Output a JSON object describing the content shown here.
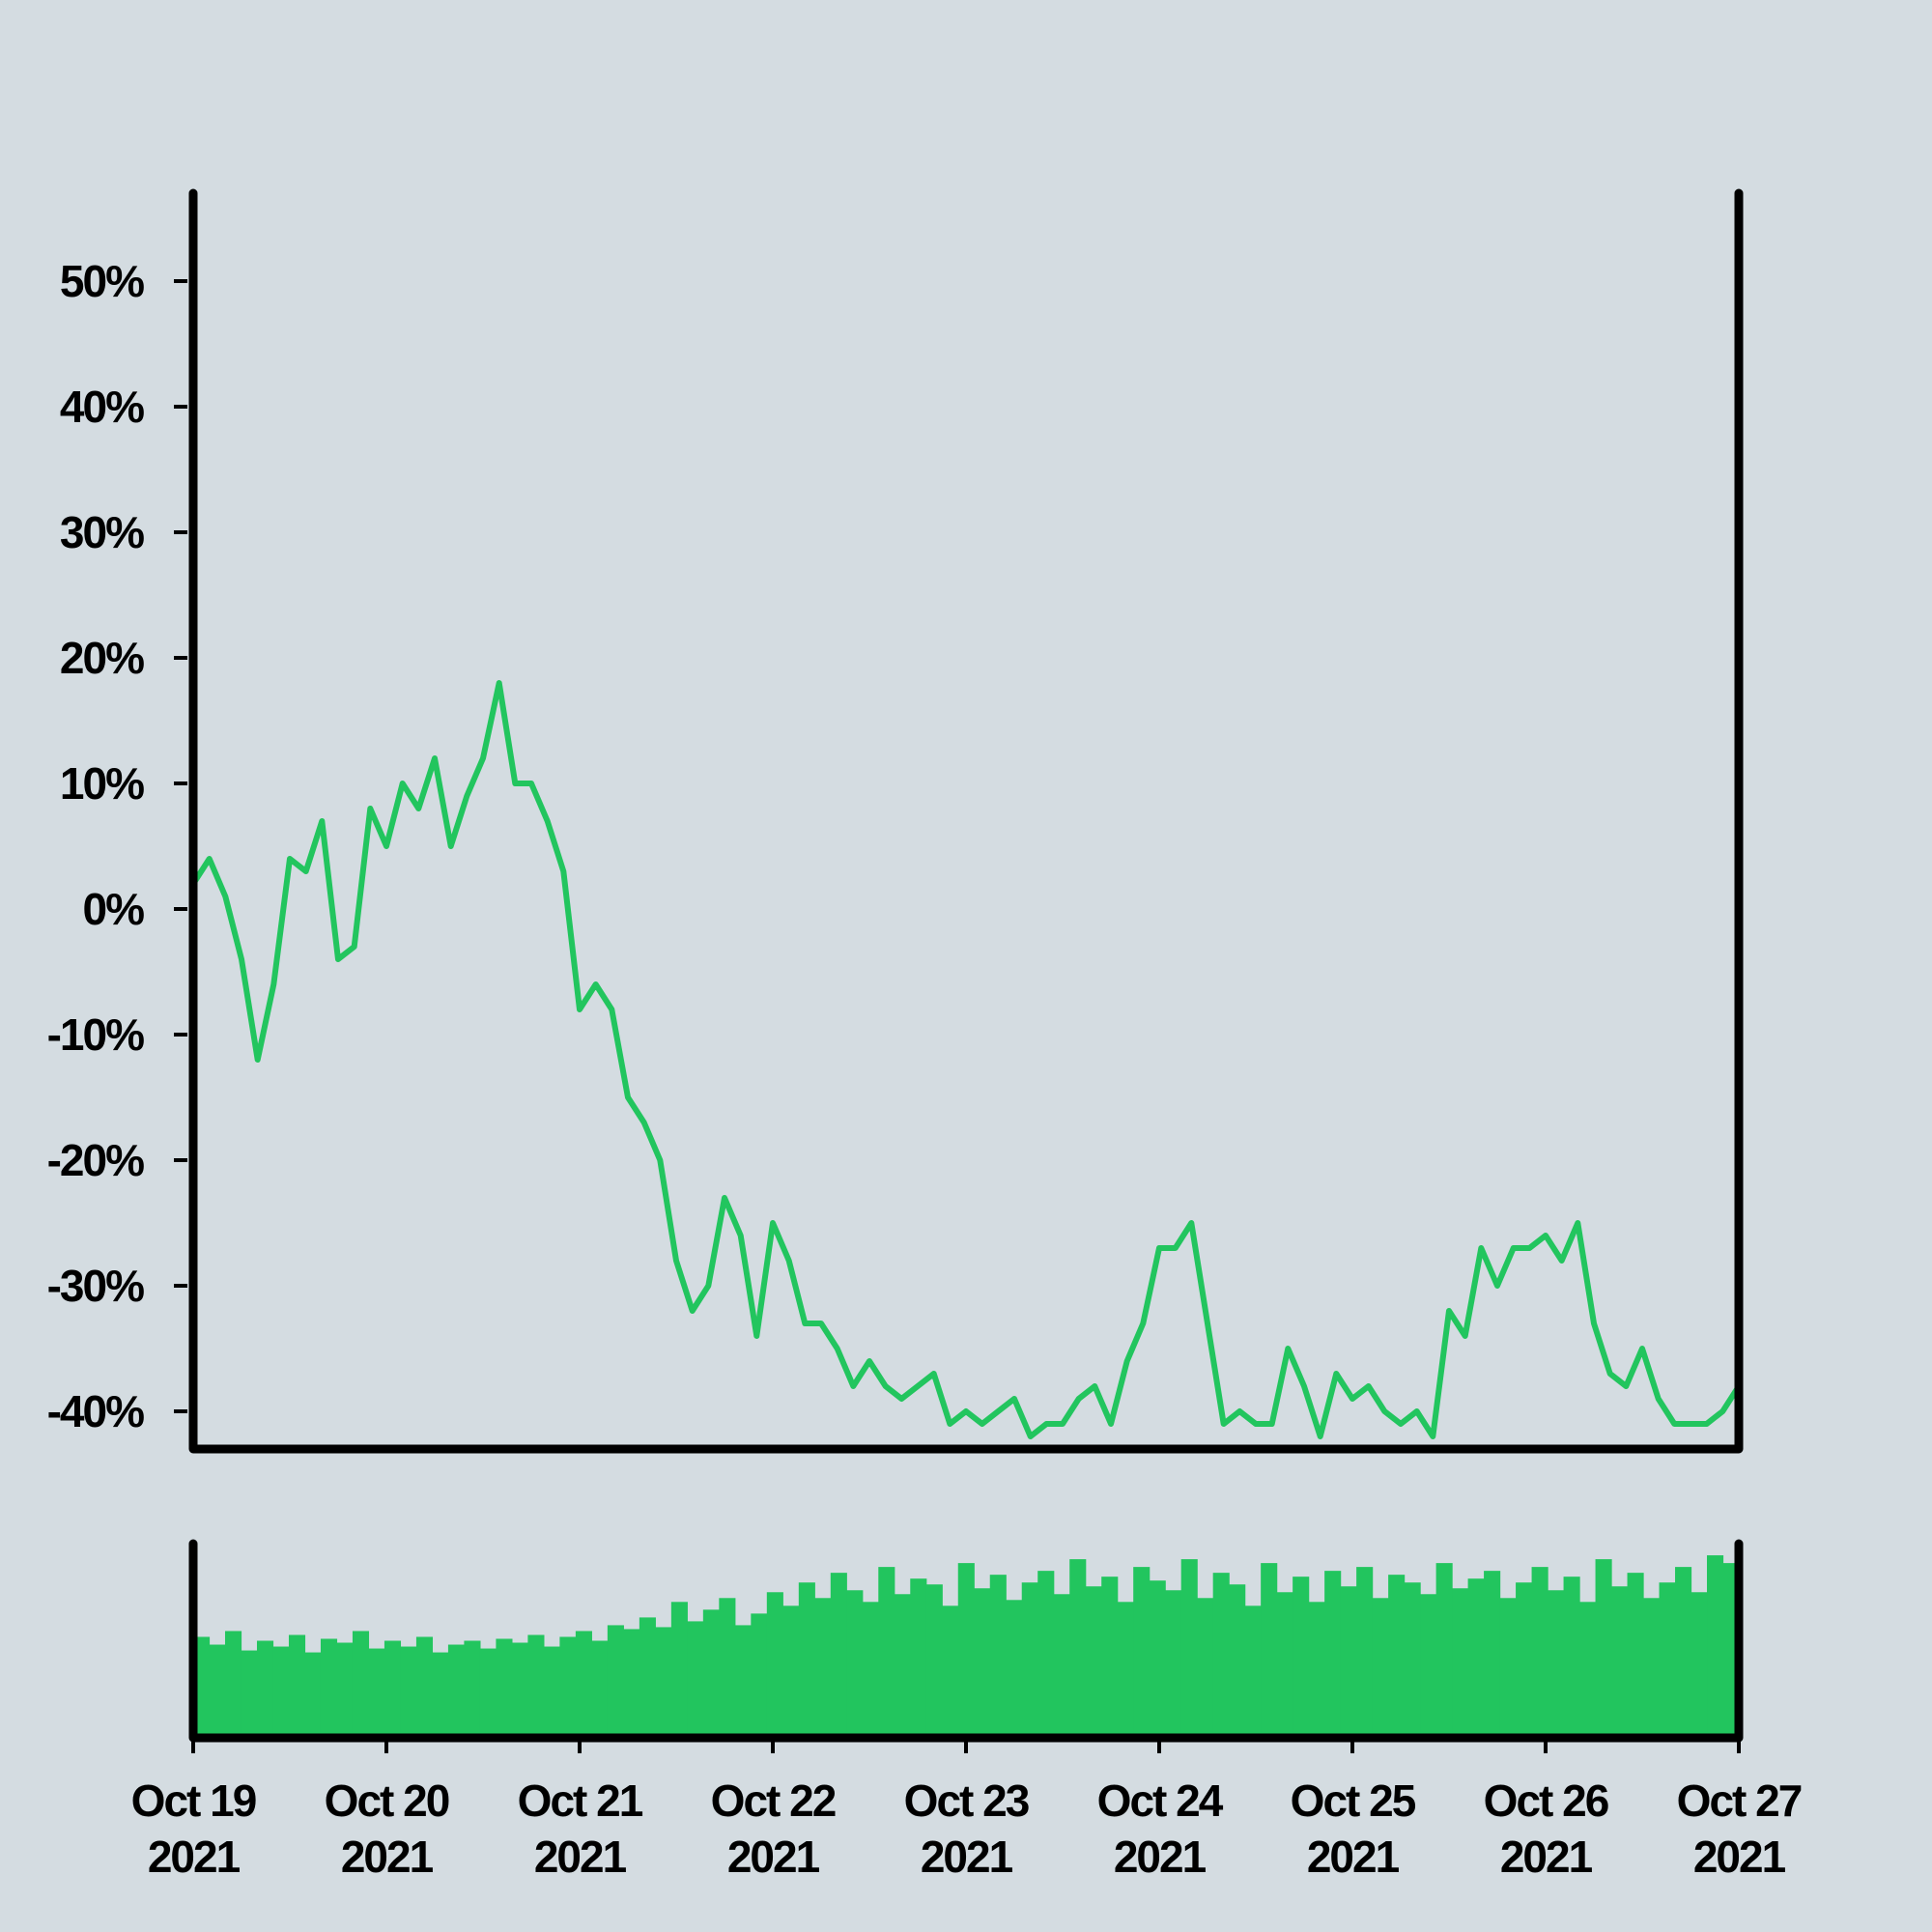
{
  "chart_data": [
    {
      "type": "line",
      "color": "#22c55e",
      "xlim": [
        "2021-10-19",
        "2021-10-27"
      ],
      "ylim": [
        -43,
        57
      ],
      "yticks": [
        {
          "value": -40,
          "label": "-40%"
        },
        {
          "value": -30,
          "label": "-30%"
        },
        {
          "value": -20,
          "label": "-20%"
        },
        {
          "value": -10,
          "label": "-10%"
        },
        {
          "value": 0,
          "label": "0%"
        },
        {
          "value": 10,
          "label": "10%"
        },
        {
          "value": 20,
          "label": "20%"
        },
        {
          "value": 30,
          "label": "30%"
        },
        {
          "value": 40,
          "label": "40%"
        },
        {
          "value": 50,
          "label": "50%"
        }
      ],
      "values": [
        2,
        4,
        1,
        -4,
        -12,
        -6,
        4,
        3,
        7,
        -4,
        -3,
        8,
        5,
        10,
        8,
        12,
        5,
        9,
        12,
        18,
        10,
        10,
        7,
        3,
        -8,
        -6,
        -8,
        -15,
        -17,
        -20,
        -28,
        -32,
        -30,
        -23,
        -26,
        -34,
        -25,
        -28,
        -33,
        -33,
        -35,
        -38,
        -36,
        -38,
        -39,
        -38,
        -37,
        -41,
        -40,
        -41,
        -40,
        -39,
        -42,
        -41,
        -41,
        -39,
        -38,
        -41,
        -36,
        -33,
        -27,
        -27,
        -25,
        -33,
        -41,
        -40,
        -41,
        -41,
        -35,
        -38,
        -42,
        -37,
        -39,
        -38,
        -40,
        -41,
        -40,
        -42,
        -32,
        -34,
        -27,
        -30,
        -27,
        -27,
        -26,
        -28,
        -25,
        -33,
        -37,
        -38,
        -35,
        -39,
        -41,
        -41,
        -41,
        -40,
        -38
      ]
    },
    {
      "type": "bar",
      "color": "#22c55e",
      "xlim": [
        "2021-10-19",
        "2021-10-27"
      ],
      "ylim": [
        0,
        100
      ],
      "xticks": [
        {
          "value": "2021-10-19",
          "label": "Oct 19 2021"
        },
        {
          "value": "2021-10-20",
          "label": "Oct 20 2021"
        },
        {
          "value": "2021-10-21",
          "label": "Oct 21 2021"
        },
        {
          "value": "2021-10-22",
          "label": "Oct 22 2021"
        },
        {
          "value": "2021-10-23",
          "label": "Oct 23 2021"
        },
        {
          "value": "2021-10-24",
          "label": "Oct 24 2021"
        },
        {
          "value": "2021-10-25",
          "label": "Oct 25 2021"
        },
        {
          "value": "2021-10-26",
          "label": "Oct 26 2021"
        },
        {
          "value": "2021-10-27",
          "label": "Oct 27 2021"
        }
      ],
      "values": [
        52,
        48,
        55,
        45,
        50,
        47,
        53,
        44,
        51,
        49,
        55,
        46,
        50,
        47,
        52,
        44,
        48,
        50,
        46,
        51,
        49,
        53,
        47,
        52,
        55,
        50,
        58,
        56,
        62,
        57,
        70,
        60,
        66,
        72,
        58,
        64,
        75,
        68,
        80,
        72,
        85,
        76,
        70,
        88,
        74,
        82,
        79,
        68,
        90,
        77,
        84,
        71,
        80,
        86,
        74,
        92,
        78,
        83,
        70,
        88,
        81,
        76,
        92,
        72,
        85,
        79,
        68,
        90,
        75,
        83,
        70,
        86,
        78,
        88,
        72,
        84,
        80,
        74,
        90,
        77,
        82,
        86,
        72,
        80,
        88,
        76,
        83,
        70,
        92,
        78,
        85,
        72,
        80,
        88,
        75,
        94,
        90
      ]
    }
  ]
}
